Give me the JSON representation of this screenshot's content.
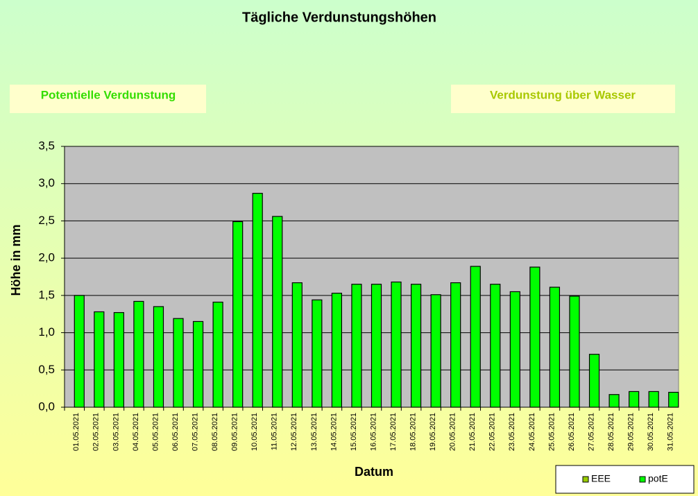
{
  "chart_data": {
    "type": "bar",
    "title": "Tägliche Verdunstungshöhen",
    "boxes": [
      "Potentielle Verdunstung",
      "Verdunstung über Wasser"
    ],
    "xlabel": "Datum",
    "ylabel": "Höhe in mm",
    "categories": [
      "01.05.2021",
      "02.05.2021",
      "03.05.2021",
      "04.05.2021",
      "05.05.2021",
      "06.05.2021",
      "07.05.2021",
      "08.05.2021",
      "09.05.2021",
      "10.05.2021",
      "11.05.2021",
      "12.05.2021",
      "13.05.2021",
      "14.05.2021",
      "15.05.2021",
      "16.05.2021",
      "17.05.2021",
      "18.05.2021",
      "19.05.2021",
      "20.05.2021",
      "21.05.2021",
      "22.05.2021",
      "23.05.2021",
      "24.05.2021",
      "25.05.2021",
      "26.05.2021",
      "27.05.2021",
      "28.05.2021",
      "29.05.2021",
      "30.05.2021",
      "31.05.2021"
    ],
    "series": [
      {
        "name": "EEE",
        "color": "#99cc00",
        "values": [
          null,
          null,
          null,
          null,
          null,
          null,
          null,
          null,
          null,
          null,
          null,
          null,
          null,
          null,
          null,
          null,
          null,
          null,
          null,
          null,
          null,
          null,
          null,
          null,
          null,
          null,
          null,
          null,
          null,
          null,
          null
        ]
      },
      {
        "name": "potE",
        "color": "#00ff00",
        "values": [
          1.5,
          1.28,
          1.27,
          1.42,
          1.35,
          1.19,
          1.15,
          1.41,
          2.49,
          2.87,
          2.56,
          1.67,
          1.44,
          1.53,
          1.65,
          1.65,
          1.68,
          1.65,
          1.51,
          1.67,
          1.89,
          1.65,
          1.55,
          1.88,
          1.61,
          1.49,
          0.71,
          0.17,
          0.21,
          0.21,
          0.2
        ]
      }
    ],
    "ylim": [
      0,
      3.5
    ],
    "yticks": [
      {
        "value": 0,
        "label": "0,0"
      },
      {
        "value": 0.5,
        "label": "0,5"
      },
      {
        "value": 1,
        "label": "1,0"
      },
      {
        "value": 1.5,
        "label": "1,5"
      },
      {
        "value": 2,
        "label": "2,0"
      },
      {
        "value": 2.5,
        "label": "2,5"
      },
      {
        "value": 3,
        "label": "3,0"
      },
      {
        "value": 3.5,
        "label": "3,5"
      }
    ],
    "grid": true,
    "legend": "bottom-right"
  }
}
